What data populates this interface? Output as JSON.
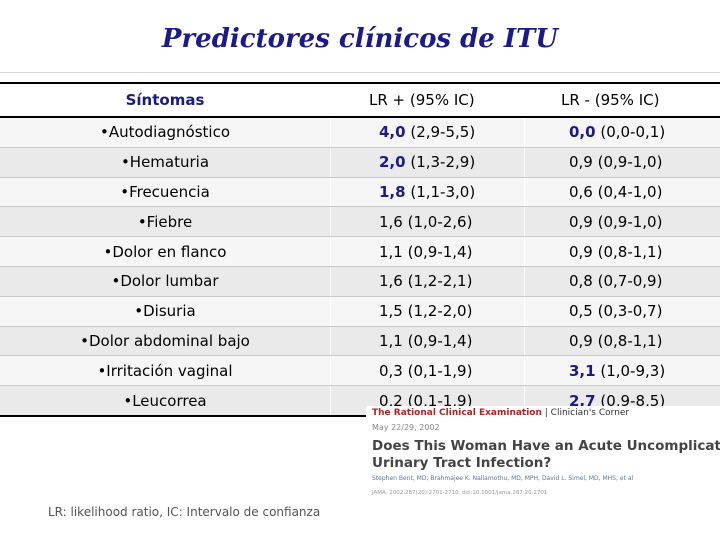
{
  "title": "Predictores clínicos de ITU",
  "table": {
    "headers": [
      "Síntomas",
      "LR + (95% IC)",
      "LR - (95% IC)"
    ],
    "rows": [
      {
        "symptom": "•Autodiagnóstico",
        "lrp_val": "4,0",
        "lrp_ci": " (2,9-5,5)",
        "lrp_hl": true,
        "lrn_val": "0,0",
        "lrn_ci": " (0,0-0,1)",
        "lrn_hl": true
      },
      {
        "symptom": "•Hematuria",
        "lrp_val": "2,0",
        "lrp_ci": " (1,3-2,9)",
        "lrp_hl": true,
        "lrn_val": "0,9",
        "lrn_ci": " (0,9-1,0)",
        "lrn_hl": false
      },
      {
        "symptom": "•Frecuencia",
        "lrp_val": "1,8",
        "lrp_ci": " (1,1-3,0)",
        "lrp_hl": true,
        "lrn_val": "0,6",
        "lrn_ci": " (0,4-1,0)",
        "lrn_hl": false
      },
      {
        "symptom": "•Fiebre",
        "lrp_val": "1,6",
        "lrp_ci": " (1,0-2,6)",
        "lrp_hl": false,
        "lrn_val": "0,9",
        "lrn_ci": " (0,9-1,0)",
        "lrn_hl": false
      },
      {
        "symptom": "•Dolor en flanco",
        "lrp_val": "1,1",
        "lrp_ci": " (0,9-1,4)",
        "lrp_hl": false,
        "lrn_val": "0,9",
        "lrn_ci": " (0,8-1,1)",
        "lrn_hl": false
      },
      {
        "symptom": "•Dolor lumbar",
        "lrp_val": "1,6",
        "lrp_ci": " (1,2-2,1)",
        "lrp_hl": false,
        "lrn_val": "0,8",
        "lrn_ci": " (0,7-0,9)",
        "lrn_hl": false
      },
      {
        "symptom": "•Disuria",
        "lrp_val": "1,5",
        "lrp_ci": " (1,2-2,0)",
        "lrp_hl": false,
        "lrn_val": "0,5",
        "lrn_ci": " (0,3-0,7)",
        "lrn_hl": false
      },
      {
        "symptom": "•Dolor abdominal bajo",
        "lrp_val": "1,1",
        "lrp_ci": " (0,9-1,4)",
        "lrp_hl": false,
        "lrn_val": "0,9",
        "lrn_ci": " (0,8-1,1)",
        "lrn_hl": false
      },
      {
        "symptom": "•Irritación vaginal",
        "lrp_val": "0,3",
        "lrp_ci": " (0,1-1,9)",
        "lrp_hl": false,
        "lrn_val": "3,1",
        "lrn_ci": " (1,0-9,3)",
        "lrn_hl": true
      },
      {
        "symptom": "•Leucorrea",
        "lrp_val": "0,2",
        "lrp_ci": " (0,1-1,9)",
        "lrp_hl": false,
        "lrn_val": "2,7",
        "lrn_ci": " (0,9-8,5)",
        "lrn_hl": true
      }
    ]
  },
  "footnote": "LR: likelihood ratio, IC: Intervalo de confianza",
  "paper": {
    "journal": "The Rational Clinical Examination",
    "section": "| Clinician's Corner",
    "date": "May 22/29, 2002",
    "title_line1": "Does This Woman Have an Acute Uncomplicated",
    "title_line2": "Urinary Tract Infection?",
    "authors": "Stephen Bent, MD; Brahmajee K. Nallamothu, MD, MPH; David L. Simel, MD, MHS; et al",
    "reference": "JAMA. 2002;287(20):2701-2710. doi:10.1001/jama.287.20.2701"
  },
  "colors": {
    "title": "#1a1a8c",
    "highlight": "#1a1a8c",
    "journal_red": "#b22222"
  }
}
